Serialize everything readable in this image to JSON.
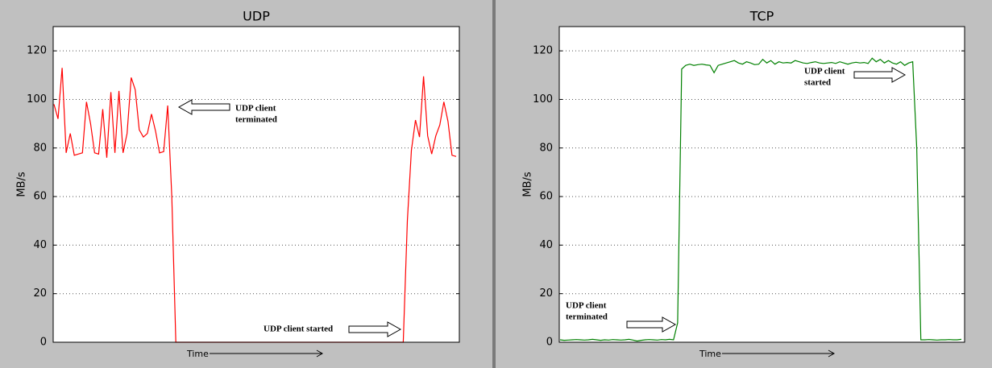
{
  "chart_data": [
    {
      "type": "line",
      "title": "UDP",
      "ylabel": "MB/s",
      "xlabel": "Time",
      "ylim": [
        0,
        130
      ],
      "yticks": [
        0,
        20,
        40,
        60,
        80,
        100,
        120
      ],
      "grid": true,
      "annotations": [
        [
          "UDP client",
          "terminated"
        ],
        [
          "UDP client started"
        ]
      ],
      "series": [
        {
          "color": "#ff0000",
          "values": [
            98,
            92,
            113,
            78,
            86,
            77,
            77.5,
            78,
            99,
            90,
            78,
            77.5,
            96,
            76,
            103,
            78,
            103.5,
            78,
            86,
            109,
            104,
            87.5,
            84.5,
            86,
            94,
            87,
            78,
            78.5,
            97.5,
            60,
            0,
            0,
            0,
            0,
            0,
            0,
            0,
            0,
            0,
            0,
            0,
            0,
            0,
            0,
            0,
            0,
            0,
            0,
            0,
            0,
            0,
            0,
            0,
            0,
            0,
            0,
            0,
            0,
            0,
            0,
            0,
            0,
            0,
            0,
            0,
            0,
            0,
            0,
            0,
            0,
            0,
            0,
            0,
            0,
            0,
            0,
            0,
            0,
            0,
            0,
            0,
            0,
            0,
            0,
            0,
            0,
            0,
            50,
            79,
            91.5,
            84.5,
            109.5,
            85,
            77.5,
            85,
            89.5,
            99,
            91,
            77,
            76.5
          ]
        }
      ]
    },
    {
      "type": "line",
      "title": "TCP",
      "ylabel": "MB/s",
      "xlabel": "Time",
      "ylim": [
        0,
        130
      ],
      "yticks": [
        0,
        20,
        40,
        60,
        80,
        100,
        120
      ],
      "grid": true,
      "annotations": [
        [
          "UDP client",
          "started"
        ],
        [
          "UDP client",
          "terminated"
        ]
      ],
      "series": [
        {
          "color": "#008000",
          "values": [
            1,
            0.8,
            0.9,
            1,
            1.1,
            1,
            0.9,
            1,
            1.2,
            1,
            0.8,
            1,
            0.9,
            1.1,
            1,
            0.9,
            1,
            1.2,
            0.9,
            0.5,
            0.8,
            1,
            1.1,
            1,
            0.9,
            1.1,
            1,
            1.2,
            1,
            8,
            112.5,
            114,
            114.5,
            114,
            114.3,
            114.5,
            114.2,
            114,
            111,
            114,
            114.5,
            115,
            115.5,
            116,
            115,
            114.5,
            115.5,
            115,
            114.3,
            114.5,
            116.5,
            115,
            116,
            114.5,
            115.5,
            115,
            115.2,
            115,
            116,
            115.5,
            115,
            114.8,
            115.2,
            115.5,
            115,
            114.8,
            115,
            115.2,
            114.8,
            115.5,
            115,
            114.5,
            115,
            115.3,
            115,
            115.2,
            114.8,
            117,
            115.5,
            116.5,
            115,
            116,
            115,
            114.5,
            115.5,
            114,
            115,
            115.5,
            80,
            1,
            1,
            1.1,
            1,
            0.9,
            1,
            1,
            1.1,
            1,
            1,
            1.2
          ]
        }
      ]
    }
  ]
}
